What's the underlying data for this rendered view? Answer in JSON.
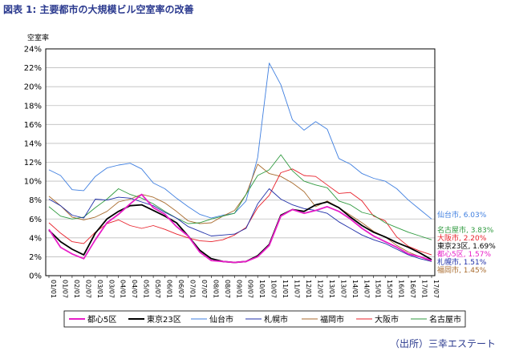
{
  "header": {
    "title": "図表 1: 主要都市の大規模ビル空室率の改善"
  },
  "footer": {
    "source": "（出所）三幸エステート"
  },
  "chart_data": {
    "type": "line",
    "title": "図表 1: 主要都市の大規模ビル空室率の改善",
    "ylabel": "空室率",
    "xlabel": "",
    "ylim": [
      0,
      24
    ],
    "yticks": [
      "0%",
      "2%",
      "4%",
      "6%",
      "8%",
      "10%",
      "12%",
      "14%",
      "16%",
      "18%",
      "20%",
      "22%",
      "24%"
    ],
    "grid": true,
    "legend_position": "bottom",
    "categories": [
      "10/01",
      "10/07",
      "11/01",
      "11/07",
      "12/01",
      "12/07",
      "13/01",
      "13/07",
      "14/01",
      "14/07",
      "15/01",
      "15/07",
      "16/01",
      "16/07",
      "17/01",
      "17/07"
    ],
    "x": [
      "01/01",
      "01/07",
      "02/01",
      "02/07",
      "03/01",
      "03/07",
      "04/01",
      "04/07",
      "05/01",
      "05/07",
      "06/01",
      "06/07",
      "07/01",
      "07/07",
      "08/01",
      "08/07",
      "09/01",
      "09/07",
      "10/01",
      "10/07",
      "11/01",
      "11/07",
      "12/01",
      "12/07",
      "13/01",
      "13/07",
      "14/01",
      "14/07",
      "15/01",
      "15/07",
      "16/01",
      "16/07",
      "17/01",
      "17/07"
    ],
    "series": [
      {
        "name": "都心5区",
        "color": "#e81ec8",
        "end_label": "都心5区, 1.57%",
        "values": [
          4.9,
          3.0,
          2.3,
          1.8,
          3.8,
          5.6,
          6.5,
          7.6,
          8.6,
          7.2,
          6.5,
          5.2,
          4.2,
          2.5,
          1.6,
          1.5,
          1.4,
          1.5,
          2.0,
          3.2,
          6.3,
          7.0,
          6.6,
          6.9,
          7.3,
          6.8,
          6.0,
          5.0,
          4.2,
          3.6,
          3.0,
          2.3,
          2.0,
          1.6
        ]
      },
      {
        "name": "東京23区",
        "color": "#000000",
        "end_label": "東京23区, 1.69%",
        "values": [
          4.8,
          3.6,
          2.8,
          2.2,
          4.5,
          6.0,
          6.8,
          7.4,
          7.5,
          6.9,
          6.3,
          5.6,
          4.2,
          2.7,
          1.8,
          1.5,
          1.4,
          1.5,
          2.1,
          3.3,
          6.4,
          7.0,
          6.8,
          7.5,
          7.8,
          7.2,
          6.2,
          5.3,
          4.6,
          4.1,
          3.5,
          3.0,
          2.4,
          1.7
        ]
      },
      {
        "name": "仙台市",
        "color": "#3f7fe0",
        "end_label": "仙台市, 6.03%",
        "values": [
          11.2,
          10.6,
          9.1,
          9.0,
          10.5,
          11.4,
          11.7,
          11.9,
          11.3,
          9.8,
          9.2,
          8.2,
          7.3,
          6.5,
          6.1,
          6.4,
          6.6,
          7.9,
          12.5,
          22.5,
          20.2,
          16.5,
          15.4,
          16.3,
          15.5,
          12.4,
          11.8,
          10.8,
          10.3,
          10.0,
          9.2,
          8.0,
          7.0,
          6.0
        ]
      },
      {
        "name": "札幌市",
        "color": "#1f2fa8",
        "end_label": "札幌市, 1.51%",
        "values": [
          8.1,
          7.4,
          6.4,
          6.1,
          8.1,
          8.0,
          8.3,
          8.2,
          7.8,
          7.4,
          6.7,
          6.1,
          5.2,
          4.7,
          4.2,
          4.3,
          4.4,
          5.0,
          7.6,
          9.2,
          8.1,
          7.5,
          7.1,
          6.9,
          6.6,
          5.7,
          5.0,
          4.3,
          3.8,
          3.4,
          2.8,
          2.2,
          1.8,
          1.5
        ]
      },
      {
        "name": "福岡市",
        "color": "#a86a2c",
        "end_label": "福岡市, 1.45%",
        "values": [
          8.4,
          7.4,
          6.2,
          5.9,
          6.2,
          6.8,
          7.8,
          8.1,
          8.6,
          8.3,
          7.7,
          6.8,
          5.8,
          5.5,
          5.6,
          6.3,
          6.9,
          8.6,
          11.8,
          10.8,
          10.5,
          9.8,
          8.9,
          7.3,
          7.9,
          7.2,
          6.4,
          5.6,
          4.7,
          4.1,
          3.2,
          2.5,
          2.0,
          1.5
        ]
      },
      {
        "name": "大阪市",
        "color": "#e8202a",
        "end_label": "大阪市, 2.20%",
        "values": [
          5.6,
          4.5,
          3.6,
          3.4,
          4.6,
          5.5,
          5.9,
          5.3,
          5.0,
          5.3,
          4.9,
          4.4,
          4.0,
          3.7,
          3.6,
          3.8,
          4.3,
          5.1,
          7.2,
          8.5,
          10.9,
          11.3,
          10.6,
          10.5,
          9.6,
          8.7,
          8.8,
          7.9,
          6.3,
          5.8,
          4.1,
          3.1,
          2.6,
          2.2
        ]
      },
      {
        "name": "名古屋市",
        "color": "#2f9a3f",
        "end_label": "名古屋市, 3.83%",
        "values": [
          7.3,
          6.3,
          6.0,
          6.2,
          7.2,
          8.1,
          9.2,
          8.6,
          8.2,
          7.6,
          6.8,
          6.1,
          5.5,
          5.6,
          6.0,
          6.3,
          6.6,
          8.6,
          10.6,
          11.2,
          12.8,
          11.1,
          10.0,
          9.6,
          9.3,
          7.9,
          7.5,
          6.7,
          6.4,
          5.6,
          5.1,
          4.6,
          4.2,
          3.8
        ]
      }
    ]
  }
}
